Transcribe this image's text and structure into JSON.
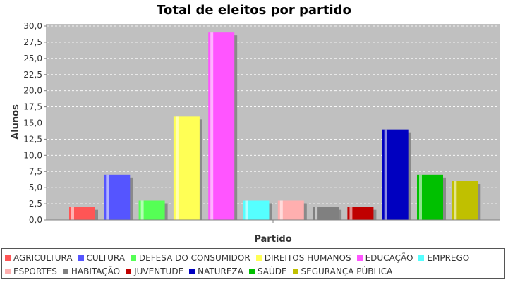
{
  "chart_data": {
    "type": "bar",
    "title": "Total de eleitos por partido",
    "xlabel": "Partido",
    "ylabel": "Alunos",
    "ylim": [
      0,
      30
    ],
    "yticks": [
      "0,0",
      "2,5",
      "5,0",
      "7,5",
      "10,0",
      "12,5",
      "15,0",
      "17,5",
      "20,0",
      "22,5",
      "25,0",
      "27,5",
      "30,0"
    ],
    "grid": true,
    "legend_position": "bottom",
    "series": [
      {
        "name": "AGRICULTURA",
        "value": 2,
        "color": "#ff5555"
      },
      {
        "name": "CULTURA",
        "value": 7,
        "color": "#5555ff"
      },
      {
        "name": "DEFESA DO CONSUMIDOR",
        "value": 3,
        "color": "#55ff55"
      },
      {
        "name": "DIREITOS HUMANOS",
        "value": 16,
        "color": "#ffff55"
      },
      {
        "name": "EDUCAÇÃO",
        "value": 29,
        "color": "#ff55ff"
      },
      {
        "name": "EMPREGO",
        "value": 3,
        "color": "#55ffff"
      },
      {
        "name": "ESPORTES",
        "value": 3,
        "color": "#ffafaf"
      },
      {
        "name": "HABITAÇÃO",
        "value": 2,
        "color": "#808080"
      },
      {
        "name": "JUVENTUDE",
        "value": 2,
        "color": "#c00000"
      },
      {
        "name": "NATUREZA",
        "value": 14,
        "color": "#0000c0"
      },
      {
        "name": "SAÚDE",
        "value": 7,
        "color": "#00c000"
      },
      {
        "name": "SEGURANÇA PÚBLICA",
        "value": 6,
        "color": "#c0c000"
      }
    ]
  }
}
